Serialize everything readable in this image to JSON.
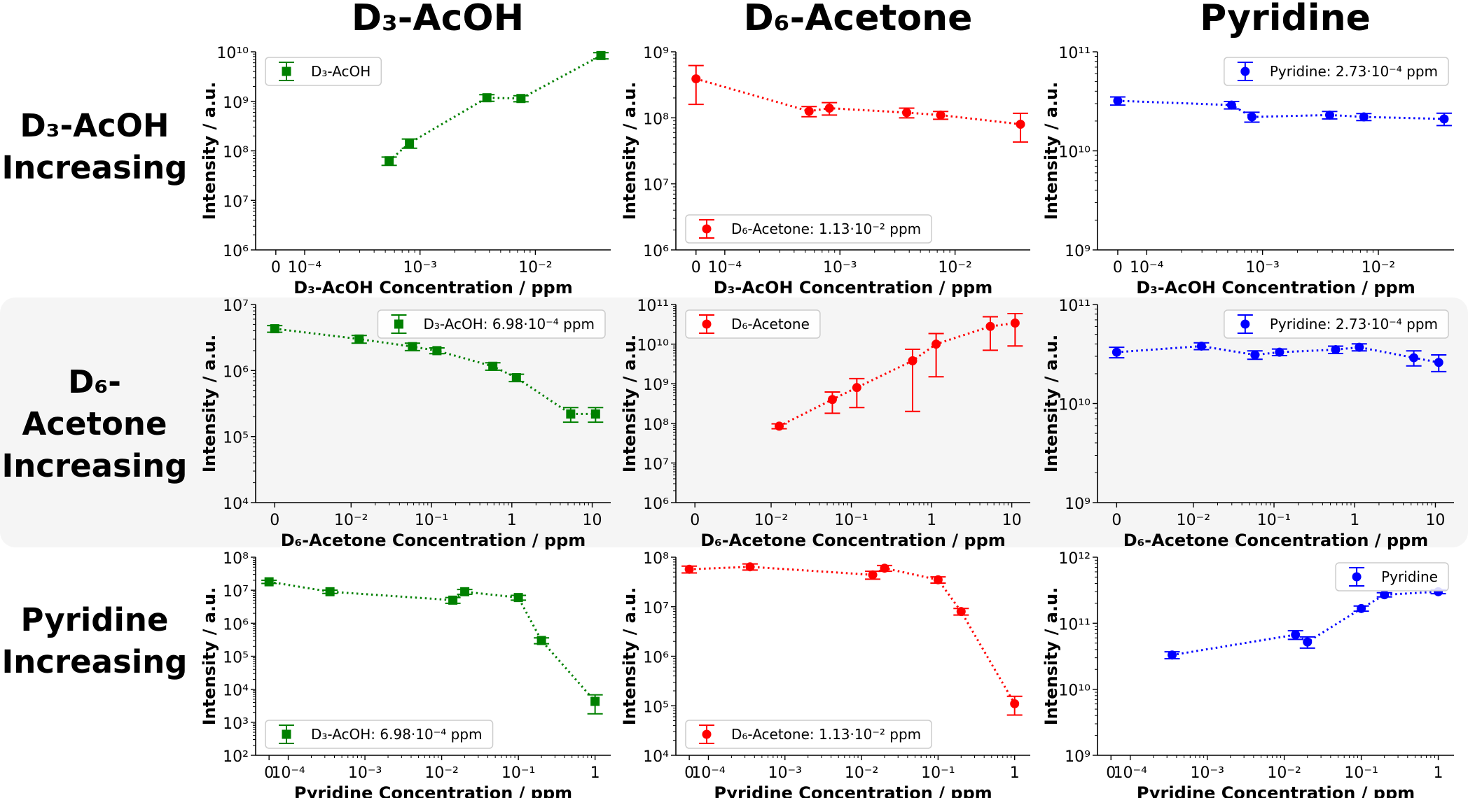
{
  "column_titles": [
    "D₃-AcOH",
    "D₆-Acetone",
    "Pyridine"
  ],
  "row_labels": [
    [
      "D₃-AcOH",
      "Increasing"
    ],
    [
      "D₆-Acetone",
      "Increasing"
    ],
    [
      "Pyridine",
      "Increasing"
    ]
  ],
  "colors": {
    "d3_acoh": "#008000",
    "d6_acetone": "#ff0000",
    "pyridine": "#0000ff",
    "band": "#f5f5f5"
  },
  "chart_data": [
    {
      "type": "line",
      "row": 0,
      "col": 0,
      "marker": "square",
      "color": "#008000",
      "xscale": "symlog",
      "linthresh": 0.0001,
      "yscale": "log",
      "xlabel": "D₃-AcOH Concentration  / ppm",
      "ylabel": "Intensity / a.u.",
      "xlim": [
        -7e-05,
        0.045
      ],
      "ylim": [
        1000000.0,
        10000000000.0
      ],
      "x_ticks": [
        0,
        0.0001,
        0.001,
        0.01
      ],
      "x_tick_labels": [
        "0",
        "10⁻⁴",
        "10⁻³",
        "10⁻²"
      ],
      "y_tick_labels": [
        "10⁶",
        "10⁷",
        "10⁸",
        "10⁹",
        "10¹⁰"
      ],
      "legend": {
        "label": "D₃-AcOH",
        "placement": "upper-left"
      },
      "x": [
        0.00054,
        0.00081,
        0.0038,
        0.0075,
        0.037
      ],
      "y": [
        63000000.0,
        143000000.0,
        1180000000.0,
        1140000000.0,
        8400000000.0
      ],
      "yerr": [
        12000000.0,
        30000000.0,
        180000000.0,
        160000000.0,
        1200000000.0
      ]
    },
    {
      "type": "line",
      "row": 0,
      "col": 1,
      "marker": "circle",
      "color": "#ff0000",
      "xscale": "symlog",
      "linthresh": 0.0001,
      "yscale": "log",
      "xlabel": "D₃-AcOH Concentration  / ppm",
      "ylabel": "Intensity / a.u.",
      "xlim": [
        -7e-05,
        0.045
      ],
      "ylim": [
        1000000.0,
        1000000000.0
      ],
      "x_ticks": [
        0,
        0.0001,
        0.001,
        0.01
      ],
      "x_tick_labels": [
        "0",
        "10⁻⁴",
        "10⁻³",
        "10⁻²"
      ],
      "y_tick_labels": [
        "10⁶",
        "10⁷",
        "10⁸",
        "10⁹"
      ],
      "legend": {
        "label": "D₆-Acetone: 1.13·10⁻² ppm",
        "placement": "lower-left"
      },
      "x": [
        0,
        0.00054,
        0.00081,
        0.0038,
        0.0075,
        0.037
      ],
      "y": [
        390000000.0,
        126000000.0,
        140000000.0,
        120000000.0,
        110000000.0,
        80000000.0
      ],
      "yerr": [
        230000000.0,
        22000000.0,
        30000000.0,
        20000000.0,
        15000000.0,
        37000000.0
      ]
    },
    {
      "type": "line",
      "row": 0,
      "col": 2,
      "marker": "circle",
      "color": "#0000ff",
      "xscale": "symlog",
      "linthresh": 0.0001,
      "yscale": "log",
      "xlabel": "D₃-AcOH Concentration  / ppm",
      "ylabel": "Intensity / a.u.",
      "xlim": [
        -7e-05,
        0.045
      ],
      "ylim": [
        1000000000.0,
        100000000000.0
      ],
      "x_ticks": [
        0,
        0.0001,
        0.001,
        0.01
      ],
      "x_tick_labels": [
        "0",
        "10⁻⁴",
        "10⁻³",
        "10⁻²"
      ],
      "y_tick_labels": [
        "10⁹",
        "10¹⁰",
        "10¹¹"
      ],
      "legend": {
        "label": "Pyridine: 2.73·10⁻⁴ ppm",
        "placement": "upper-right"
      },
      "x": [
        0,
        0.00054,
        0.00081,
        0.0038,
        0.0075,
        0.037
      ],
      "y": [
        32000000000.0,
        29000000000.0,
        22000000000.0,
        23000000000.0,
        22000000000.0,
        21000000000.0
      ],
      "yerr": [
        3000000000.0,
        2500000000.0,
        2500000000.0,
        2000000000.0,
        1800000000.0,
        3000000000.0
      ]
    },
    {
      "type": "line",
      "row": 1,
      "col": 0,
      "marker": "square",
      "color": "#008000",
      "xscale": "symlog",
      "linthresh": 0.01,
      "yscale": "log",
      "xlabel": "D₆-Acetone Concentration  / ppm",
      "ylabel": "Intensity / a.u.",
      "xlim": [
        -0.0025,
        17
      ],
      "ylim": [
        10000.0,
        10000000.0
      ],
      "x_ticks": [
        0,
        0.01,
        0.1,
        1,
        10
      ],
      "x_tick_labels": [
        "0",
        "10⁻²",
        "10⁻¹",
        "1",
        "10"
      ],
      "y_tick_labels": [
        "10⁴",
        "10⁵",
        "10⁶",
        "10⁷"
      ],
      "legend": {
        "label": "D₃-AcOH: 6.98·10⁻⁴ ppm",
        "placement": "upper-right"
      },
      "x": [
        0,
        0.0126,
        0.058,
        0.117,
        0.58,
        1.14,
        5.4,
        11
      ],
      "y": [
        4300000.0,
        3000000.0,
        2300000.0,
        2000000.0,
        1160000.0,
        780000.0,
        220000.0,
        220000.0
      ],
      "yerr": [
        500000.0,
        400000.0,
        300000.0,
        200000.0,
        150000.0,
        100000.0,
        55000.0,
        55000.0
      ]
    },
    {
      "type": "line",
      "row": 1,
      "col": 1,
      "marker": "circle",
      "color": "#ff0000",
      "xscale": "symlog",
      "linthresh": 0.01,
      "yscale": "log",
      "xlabel": "D₆-Acetone Concentration  / ppm",
      "ylabel": "Intensity / a.u.",
      "xlim": [
        -0.0025,
        17
      ],
      "ylim": [
        1000000.0,
        100000000000.0
      ],
      "x_ticks": [
        0,
        0.01,
        0.1,
        1,
        10
      ],
      "x_tick_labels": [
        "0",
        "10⁻²",
        "10⁻¹",
        "1",
        "10"
      ],
      "y_tick_labels": [
        "10⁶",
        "10⁷",
        "10⁸",
        "10⁹",
        "10¹⁰",
        "10¹¹"
      ],
      "legend": {
        "label": "D₆-Acetone",
        "placement": "upper-left"
      },
      "x": [
        0.0126,
        0.058,
        0.117,
        0.58,
        1.14,
        5.4,
        11
      ],
      "y": [
        85000000.0,
        400000000.0,
        800000000.0,
        3800000000.0,
        10000000000.0,
        28000000000.0,
        34000000000.0
      ],
      "yerr": [
        12000000.0,
        220000000.0,
        550000000.0,
        3600000000.0,
        8500000000.0,
        21000000000.0,
        25000000000.0
      ]
    },
    {
      "type": "line",
      "row": 1,
      "col": 2,
      "marker": "circle",
      "color": "#0000ff",
      "xscale": "symlog",
      "linthresh": 0.01,
      "yscale": "log",
      "xlabel": "D₆-Acetone Concentration  / ppm",
      "ylabel": "Intensity / a.u.",
      "xlim": [
        -0.0025,
        17
      ],
      "ylim": [
        1000000000.0,
        100000000000.0
      ],
      "x_ticks": [
        0,
        0.01,
        0.1,
        1,
        10
      ],
      "x_tick_labels": [
        "0",
        "10⁻²",
        "10⁻¹",
        "1",
        "10"
      ],
      "y_tick_labels": [
        "10⁹",
        "10¹⁰",
        "10¹¹"
      ],
      "legend": {
        "label": "Pyridine: 2.73·10⁻⁴ ppm",
        "placement": "upper-right"
      },
      "x": [
        0,
        0.0126,
        0.058,
        0.117,
        0.58,
        1.14,
        5.4,
        11
      ],
      "y": [
        33000000000.0,
        38000000000.0,
        31000000000.0,
        33000000000.0,
        35000000000.0,
        37000000000.0,
        29000000000.0,
        26000000000.0
      ],
      "yerr": [
        4000000000.0,
        3000000000.0,
        3000000000.0,
        2500000000.0,
        3000000000.0,
        3000000000.0,
        5000000000.0,
        5000000000.0
      ]
    },
    {
      "type": "line",
      "row": 2,
      "col": 0,
      "marker": "square",
      "color": "#008000",
      "xscale": "symlog",
      "linthresh": 0.0001,
      "yscale": "log",
      "xlabel": "Pyridine Concentration  / ppm",
      "ylabel": "Intensity / a.u.",
      "xlim": [
        -7e-05,
        1.6
      ],
      "ylim": [
        100.0,
        100000000.0
      ],
      "x_ticks": [
        0,
        0.0001,
        0.001,
        0.01,
        0.1,
        1
      ],
      "x_tick_labels": [
        "0",
        "10⁻⁴",
        "10⁻³",
        "10⁻²",
        "10⁻¹",
        "1"
      ],
      "y_tick_labels": [
        "10²",
        "10³",
        "10⁴",
        "10⁵",
        "10⁶",
        "10⁷",
        "10⁸"
      ],
      "legend": {
        "label": "D₃-AcOH: 6.98·10⁻⁴ ppm",
        "placement": "lower-left"
      },
      "x": [
        0,
        0.00035,
        0.014,
        0.02,
        0.1,
        0.2,
        1.0
      ],
      "y": [
        18000000.0,
        9000000.0,
        5000000.0,
        9000000.0,
        6000000.0,
        300000.0,
        4300.0
      ],
      "yerr": [
        2000000.0,
        1000000.0,
        1000000.0,
        1500000.0,
        1000000.0,
        60000.0,
        2500.0
      ]
    },
    {
      "type": "line",
      "row": 2,
      "col": 1,
      "marker": "circle",
      "color": "#ff0000",
      "xscale": "symlog",
      "linthresh": 0.0001,
      "yscale": "log",
      "xlabel": "Pyridine Concentration  / ppm",
      "ylabel": "Intensity / a.u.",
      "xlim": [
        -7e-05,
        1.6
      ],
      "ylim": [
        10000.0,
        100000000.0
      ],
      "x_ticks": [
        0,
        0.0001,
        0.001,
        0.01,
        0.1,
        1
      ],
      "x_tick_labels": [
        "0",
        "10⁻⁴",
        "10⁻³",
        "10⁻²",
        "10⁻¹",
        "1"
      ],
      "y_tick_labels": [
        "10⁴",
        "10⁵",
        "10⁶",
        "10⁷",
        "10⁸"
      ],
      "legend": {
        "label": "D₆-Acetone: 1.13·10⁻² ppm",
        "placement": "lower-left"
      },
      "x": [
        0,
        0.00035,
        0.014,
        0.02,
        0.1,
        0.2,
        1.0
      ],
      "y": [
        57000000.0,
        64000000.0,
        44000000.0,
        60000000.0,
        35000000.0,
        8000000.0,
        110000.0
      ],
      "yerr": [
        9000000.0,
        9000000.0,
        8000000.0,
        8000000.0,
        5000000.0,
        1200000.0,
        45000.0
      ]
    },
    {
      "type": "line",
      "row": 2,
      "col": 2,
      "marker": "circle",
      "color": "#0000ff",
      "xscale": "symlog",
      "linthresh": 0.0001,
      "yscale": "log",
      "xlabel": "Pyridine Concentration  / ppm",
      "ylabel": "Intensity / a.u.",
      "xlim": [
        -7e-05,
        1.6
      ],
      "ylim": [
        1000000000.0,
        1000000000000.0
      ],
      "x_ticks": [
        0,
        0.0001,
        0.001,
        0.01,
        0.1,
        1
      ],
      "x_tick_labels": [
        "0",
        "10⁻⁴",
        "10⁻³",
        "10⁻²",
        "10⁻¹",
        "1"
      ],
      "y_tick_labels": [
        "10⁹",
        "10¹⁰",
        "10¹¹",
        "10¹²"
      ],
      "legend": {
        "label": "Pyridine",
        "placement": "upper-right"
      },
      "x": [
        0.00035,
        0.014,
        0.02,
        0.1,
        0.2,
        1.0
      ],
      "y": [
        33000000000.0,
        67000000000.0,
        52000000000.0,
        167000000000.0,
        270000000000.0,
        300000000000.0
      ],
      "yerr": [
        4000000000.0,
        10000000000.0,
        10000000000.0,
        15000000000.0,
        20000000000.0,
        20000000000.0
      ]
    }
  ]
}
